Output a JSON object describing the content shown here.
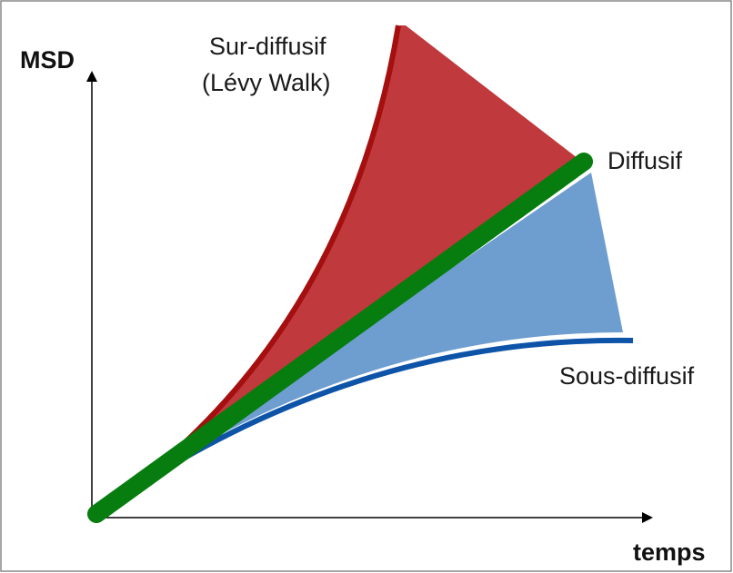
{
  "axes": {
    "y_label": "MSD",
    "x_label": "temps"
  },
  "curves": {
    "super": {
      "label_line1": "Sur-diffusif",
      "label_line2": "(Lévy Walk)"
    },
    "normal": {
      "label": "Diffusif"
    },
    "sub": {
      "label": "Sous-diffusif"
    }
  }
}
